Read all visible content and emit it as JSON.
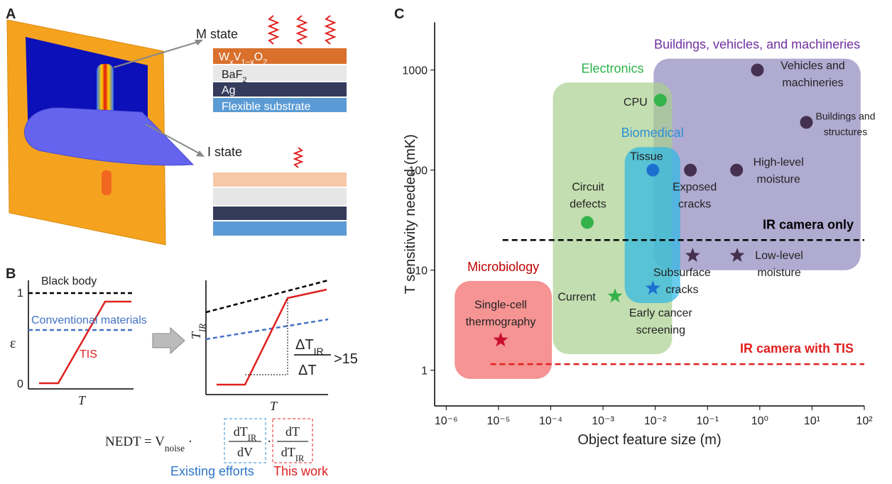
{
  "panel_a": {
    "letter": "A",
    "m_state": "M state",
    "i_state": "I state",
    "layers": [
      [
        "W",
        "x",
        "V",
        "1−x",
        "O",
        "2"
      ],
      [
        "BaF",
        "2"
      ],
      [
        "Ag"
      ],
      [
        "Flexible substrate"
      ]
    ]
  },
  "panel_b": {
    "letter": "B",
    "black_body": "Black body",
    "one": "1",
    "zero": "0",
    "conventional": "Conventional materials",
    "tis": "TIS",
    "y_label_left": "ε",
    "x_label_left": "T",
    "y_label_right": [
      "T",
      "IR"
    ],
    "x_label_right": "T",
    "ratio_numerator": [
      "ΔT",
      "IR"
    ],
    "ratio_denominator": "ΔT",
    "ratio_threshold": ">15",
    "equation": {
      "lhs": [
        "NEDT = V",
        "noise",
        " ·"
      ],
      "term1_num": [
        "dT",
        "IR"
      ],
      "term1_den": "dV",
      "dot": "·",
      "term2_num": "dT",
      "term2_den": [
        "dT",
        "IR"
      ]
    },
    "existing_efforts": "Existing efforts",
    "this_work": "This work"
  },
  "chart_data": {
    "type": "scatter",
    "letter": "C",
    "x_label": "Object feature size (m)",
    "y_label": "T sensitivity needed (mK)",
    "log_x": true,
    "log_y": true,
    "xlim": [
      6e-07,
      100
    ],
    "ylim": [
      0.44,
      3000
    ],
    "xticks": [
      {
        "value": 1e-06,
        "label": "10⁻⁶"
      },
      {
        "value": 1e-05,
        "label": "10⁻⁵"
      },
      {
        "value": 0.0001,
        "label": "10⁻⁴"
      },
      {
        "value": 0.001,
        "label": "10⁻³"
      },
      {
        "value": 0.01,
        "label": "10⁻²"
      },
      {
        "value": 0.1,
        "label": "10⁻¹"
      },
      {
        "value": 1,
        "label": "10⁰"
      },
      {
        "value": 10,
        "label": "10¹"
      },
      {
        "value": 100,
        "label": "10²"
      }
    ],
    "yticks": [
      1,
      10,
      100,
      1000
    ],
    "series": [
      {
        "name": "Buildings, vehicles, and machineries",
        "color": "#45304f",
        "label_color": "#7030a0",
        "region_color": "#8e88bd",
        "region": {
          "x": [
            0.0093,
            85
          ],
          "y": [
            10,
            1300
          ]
        },
        "x": [
          0.9,
          7.8,
          0.047,
          0.36,
          0.052,
          0.37
        ],
        "values": [
          1000,
          300,
          100,
          100,
          14,
          14
        ],
        "markers": [
          "circle",
          "circle",
          "circle",
          "circle",
          "star",
          "star"
        ],
        "labels": [
          [
            "Vehicles and",
            "machineries"
          ],
          [
            "Buildings and",
            "structures"
          ],
          [
            "Exposed",
            "cracks"
          ],
          [
            "High-level",
            "moisture"
          ],
          [
            "Subsurface",
            "cracks"
          ],
          [
            "Low-level",
            "moisture"
          ]
        ]
      },
      {
        "name": "Electronics",
        "color": "#34b34a",
        "label_color": "#2db34a",
        "region_color": "#a9d08e",
        "region": {
          "x": [
            0.00011,
            0.021
          ],
          "y": [
            1.45,
            750
          ]
        },
        "x": [
          0.0125,
          0.0005,
          0.0017
        ],
        "values": [
          500,
          30,
          5.5
        ],
        "markers": [
          "circle",
          "circle",
          "star"
        ],
        "labels": [
          [
            "CPU"
          ],
          [
            "Circuit",
            "defects"
          ],
          [
            "Current"
          ]
        ]
      },
      {
        "name": "Biomedical",
        "color": "#1f6fd1",
        "label_color": "#2e8fd6",
        "region_color": "#2bb8e6",
        "region": {
          "x": [
            0.0026,
            0.03
          ],
          "y": [
            4.7,
            170
          ]
        },
        "x": [
          0.009,
          0.009
        ],
        "values": [
          100,
          6.6
        ],
        "markers": [
          "circle",
          "star"
        ],
        "labels": [
          [
            "Tissue"
          ],
          [
            "Early cancer",
            "screening"
          ]
        ]
      },
      {
        "name": "Microbiology",
        "color": "#c8102e",
        "label_color": "#c00000",
        "region_color": "#f26565",
        "region": {
          "x": [
            1.45e-06,
            0.000105
          ],
          "y": [
            0.82,
            7.8
          ]
        },
        "x": [
          1.1e-05
        ],
        "values": [
          2
        ],
        "markers": [
          "star"
        ],
        "labels": [
          [
            "Single-cell",
            "thermography"
          ]
        ]
      }
    ],
    "reference_lines": [
      {
        "label": "IR camera only",
        "value": 20,
        "color": "#000000",
        "x": [
          1.2e-05,
          100
        ]
      },
      {
        "label": "IR camera with TIS",
        "value": 1.15,
        "color": "#e02020",
        "x": [
          7e-06,
          100
        ]
      }
    ]
  }
}
